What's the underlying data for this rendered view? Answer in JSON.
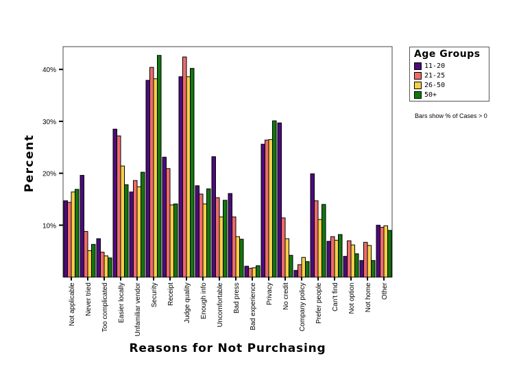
{
  "chart_data": {
    "type": "bar",
    "title": "",
    "xlabel": "Reasons for Not Purchasing",
    "ylabel": "Percent",
    "ylim": [
      0,
      43.5
    ],
    "yticks": [
      10,
      20,
      30,
      40
    ],
    "ytick_labels": [
      "10%",
      "20%",
      "30%",
      "40%"
    ],
    "grid": false,
    "legend_title": "Age Groups",
    "legend_position": "right",
    "note": "Bars show % of Cases > 0",
    "categories": [
      "Not applicable",
      "Never tried",
      "Too complicated",
      "Easier locally",
      "Unfamiliar vendor",
      "Security",
      "Receipt",
      "Judge quality",
      "Enough info",
      "Uncomfortable",
      "Bad press",
      "Bad experience",
      "Privacy",
      "No credit",
      "Company policy",
      "Prefer people",
      "Can't find",
      "Not option",
      "Not home",
      "Other"
    ],
    "series": [
      {
        "name": "11-20",
        "color": "#4B0C7A",
        "values": [
          14.7,
          19.6,
          7.4,
          28.5,
          16.4,
          37.9,
          23.1,
          38.6,
          17.6,
          23.2,
          16.1,
          2.1,
          25.6,
          29.7,
          1.3,
          19.9,
          6.9,
          4.0,
          3.2,
          10.0
        ]
      },
      {
        "name": "21-25",
        "color": "#EE6B6B",
        "values": [
          14.4,
          8.8,
          4.8,
          27.2,
          18.6,
          40.4,
          20.9,
          42.4,
          16.0,
          15.3,
          11.6,
          1.7,
          26.4,
          11.4,
          2.4,
          14.7,
          7.8,
          7.0,
          6.7,
          9.6
        ]
      },
      {
        "name": "26-50",
        "color": "#F6CF4A",
        "values": [
          16.4,
          5.1,
          4.1,
          21.4,
          17.4,
          38.2,
          13.9,
          38.6,
          14.1,
          11.6,
          7.8,
          1.8,
          26.5,
          7.4,
          3.8,
          11.1,
          7.1,
          6.2,
          6.1,
          9.9
        ]
      },
      {
        "name": "50+",
        "color": "#13760F",
        "values": [
          16.9,
          6.3,
          3.7,
          17.8,
          20.2,
          42.7,
          14.1,
          40.2,
          17.0,
          14.8,
          7.3,
          2.2,
          30.1,
          4.2,
          3.0,
          14.0,
          8.2,
          4.5,
          3.2,
          9.0
        ]
      }
    ]
  },
  "legend": {
    "title": "Age Groups",
    "items": [
      {
        "label": "11-20"
      },
      {
        "label": "21-25"
      },
      {
        "label": "26-50"
      },
      {
        "label": "50+"
      }
    ]
  },
  "note": "Bars show % of Cases > 0"
}
